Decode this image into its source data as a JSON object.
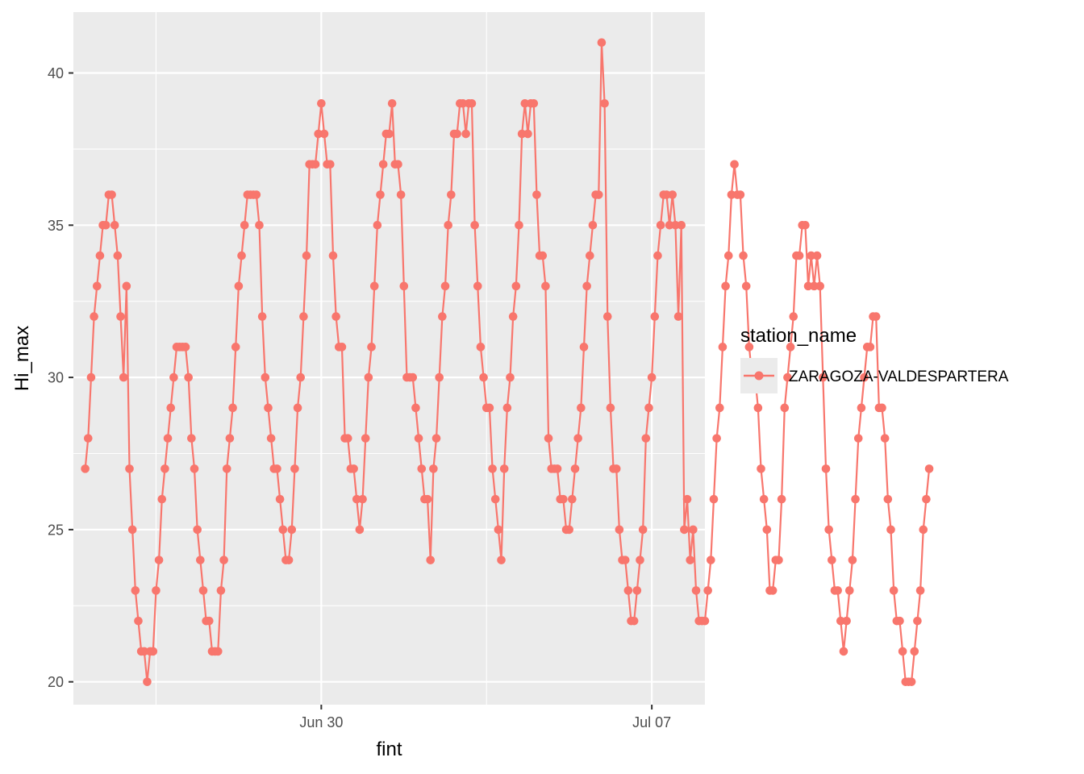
{
  "chart_data": {
    "type": "line",
    "xlabel": "fint",
    "ylabel": "Hi_max",
    "ylim": [
      19.25,
      42.0
    ],
    "y_ticks": [
      20,
      25,
      30,
      35,
      40
    ],
    "x_ticks": [
      {
        "date": "2023-06-30",
        "label": "Jun 30"
      },
      {
        "date": "2023-07-07",
        "label": "Jul 07"
      }
    ],
    "xlim": [
      "2023-06-24T18:00",
      "2023-07-08T03:00"
    ],
    "grid": true,
    "legend": {
      "title": "station_name",
      "position": "right"
    },
    "colors": {
      "series": "#F8766D",
      "panel": "#EBEBEB",
      "grid": "#FFFFFF"
    },
    "x_start": "2023-06-25T00:00",
    "x_step_hours": 1.5,
    "series": [
      {
        "name": "ZARAGOZA-VALDESPARTERA",
        "values": [
          27,
          28,
          30,
          32,
          33,
          34,
          35,
          35,
          36,
          36,
          35,
          34,
          32,
          30,
          33,
          27,
          25,
          23,
          22,
          21,
          21,
          20,
          21,
          21,
          23,
          24,
          26,
          27,
          28,
          29,
          30,
          31,
          31,
          31,
          31,
          30,
          28,
          27,
          25,
          24,
          23,
          22,
          22,
          21,
          21,
          21,
          23,
          24,
          27,
          28,
          29,
          31,
          33,
          34,
          35,
          36,
          36,
          36,
          36,
          35,
          32,
          30,
          29,
          28,
          27,
          27,
          26,
          25,
          24,
          24,
          25,
          27,
          29,
          30,
          32,
          34,
          37,
          37,
          37,
          38,
          39,
          38,
          37,
          37,
          34,
          32,
          31,
          31,
          28,
          28,
          27,
          27,
          26,
          25,
          26,
          28,
          30,
          31,
          33,
          35,
          36,
          37,
          38,
          38,
          39,
          37,
          37,
          36,
          33,
          30,
          30,
          30,
          29,
          28,
          27,
          26,
          26,
          24,
          27,
          28,
          30,
          32,
          33,
          35,
          36,
          38,
          38,
          39,
          39,
          38,
          39,
          39,
          35,
          33,
          31,
          30,
          29,
          29,
          27,
          26,
          25,
          24,
          27,
          29,
          30,
          32,
          33,
          35,
          38,
          39,
          38,
          39,
          39,
          36,
          34,
          34,
          33,
          28,
          27,
          27,
          27,
          26,
          26,
          25,
          25,
          26,
          27,
          28,
          29,
          31,
          33,
          34,
          35,
          36,
          36,
          41,
          39,
          32,
          29,
          27,
          27,
          25,
          24,
          24,
          23,
          22,
          22,
          23,
          24,
          25,
          28,
          29,
          30,
          32,
          34,
          35,
          36,
          36,
          35,
          36,
          35,
          32,
          35,
          25,
          26,
          24,
          25,
          23,
          22,
          22,
          22,
          23,
          24,
          26,
          28,
          29,
          31,
          33,
          34,
          36,
          37,
          36,
          36,
          34,
          33,
          31,
          30,
          30,
          29,
          27,
          26,
          25,
          23,
          23,
          24,
          24,
          26,
          29,
          30,
          31,
          32,
          34,
          34,
          35,
          35,
          33,
          34,
          33,
          34,
          33,
          30,
          27,
          25,
          24,
          23,
          23,
          22,
          21,
          22,
          23,
          24,
          26,
          28,
          29,
          30,
          31,
          31,
          32,
          32,
          29,
          29,
          28,
          26,
          25,
          23,
          22,
          22,
          21,
          20,
          20,
          20,
          21,
          22,
          23,
          25,
          26,
          27
        ]
      }
    ]
  }
}
